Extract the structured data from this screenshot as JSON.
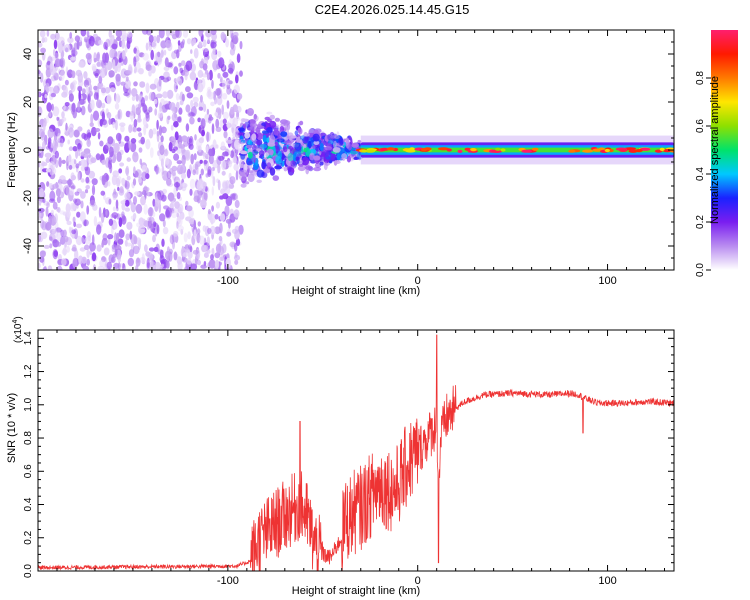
{
  "title": "C2E4.2026.025.14.45.G15",
  "chart_data": [
    {
      "type": "heatmap",
      "title": "",
      "xlabel": "Height of straight line (km)",
      "ylabel": "Frequency (Hz)",
      "xlim": [
        -200,
        135
      ],
      "ylim": [
        -50,
        50
      ],
      "xticks": [
        -100,
        0,
        100
      ],
      "yticks": [
        -40,
        -20,
        0,
        20,
        40
      ],
      "colorbar": {
        "label": "Normalized spectral amplitude",
        "range": [
          0,
          1
        ],
        "ticks": [
          "0.0",
          "0.2",
          "0.4",
          "0.6",
          "0.8"
        ],
        "colors": [
          "#ffffff",
          "#b98cf0",
          "#7a1ef0",
          "#1a22ff",
          "#00c8ff",
          "#00e36a",
          "#8ee000",
          "#ffe600",
          "#ff7a00",
          "#ff1a00",
          "#ff1e6e"
        ]
      },
      "regions": [
        {
          "name": "noise",
          "x": [
            -200,
            -93
          ],
          "freq_spread": [
            -50,
            50
          ]
        },
        {
          "name": "transition",
          "x": [
            -93,
            -30
          ],
          "freq_spread": [
            -10,
            20
          ]
        },
        {
          "name": "tone",
          "x": [
            -30,
            135
          ],
          "freq_center": 0,
          "freq_halfwidth": 3
        }
      ]
    },
    {
      "type": "line",
      "title": "",
      "xlabel": "Height of straight line (km)",
      "ylabel": "SNR (10 * v/v)",
      "y_multiplier": "(x10",
      "y_multiplier_exp": "4",
      "xlim": [
        -200,
        135
      ],
      "ylim": [
        0,
        1.45
      ],
      "xticks": [
        -100,
        0,
        100
      ],
      "yticks": [
        "0.0",
        "0.2",
        "0.4",
        "0.6",
        "0.8",
        "1.0",
        "1.2",
        "1.4"
      ],
      "line_color": "#ee3333",
      "envelope": {
        "x": [
          -200,
          -95,
          -88,
          -84,
          -75,
          -68,
          -62,
          -58,
          -55,
          -52,
          -50,
          -46,
          -40,
          -38,
          -34,
          -30,
          -25,
          -20,
          -15,
          -12,
          -5,
          0,
          5,
          8,
          10,
          11,
          12,
          15,
          20,
          25,
          35,
          50,
          70,
          80,
          85,
          88,
          95,
          110,
          120,
          135
        ],
        "y": [
          0.02,
          0.03,
          0.06,
          0.18,
          0.28,
          0.35,
          0.4,
          0.32,
          0.18,
          0.12,
          0.1,
          0.08,
          0.2,
          0.3,
          0.35,
          0.38,
          0.45,
          0.52,
          0.5,
          0.48,
          0.65,
          0.72,
          0.8,
          0.85,
          0.88,
          0.4,
          0.8,
          0.92,
          0.98,
          1.02,
          1.06,
          1.07,
          1.06,
          1.07,
          1.06,
          1.04,
          1.01,
          1.01,
          1.02,
          1.01
        ]
      },
      "noise_amplitude": [
        {
          "x": [
            -200,
            -88
          ],
          "amp": 0.012
        },
        {
          "x": [
            -88,
            -50
          ],
          "amp": 0.22
        },
        {
          "x": [
            -50,
            -40
          ],
          "amp": 0.05
        },
        {
          "x": [
            -40,
            0
          ],
          "amp": 0.26
        },
        {
          "x": [
            0,
            20
          ],
          "amp": 0.15
        },
        {
          "x": [
            20,
            135
          ],
          "amp": 0.02
        }
      ],
      "spikes": [
        {
          "x": 10,
          "y": 1.42
        },
        {
          "x": 11,
          "y": 0.05
        },
        {
          "x": -62,
          "y": 0.9
        },
        {
          "x": 87,
          "y": 0.83
        }
      ]
    }
  ]
}
